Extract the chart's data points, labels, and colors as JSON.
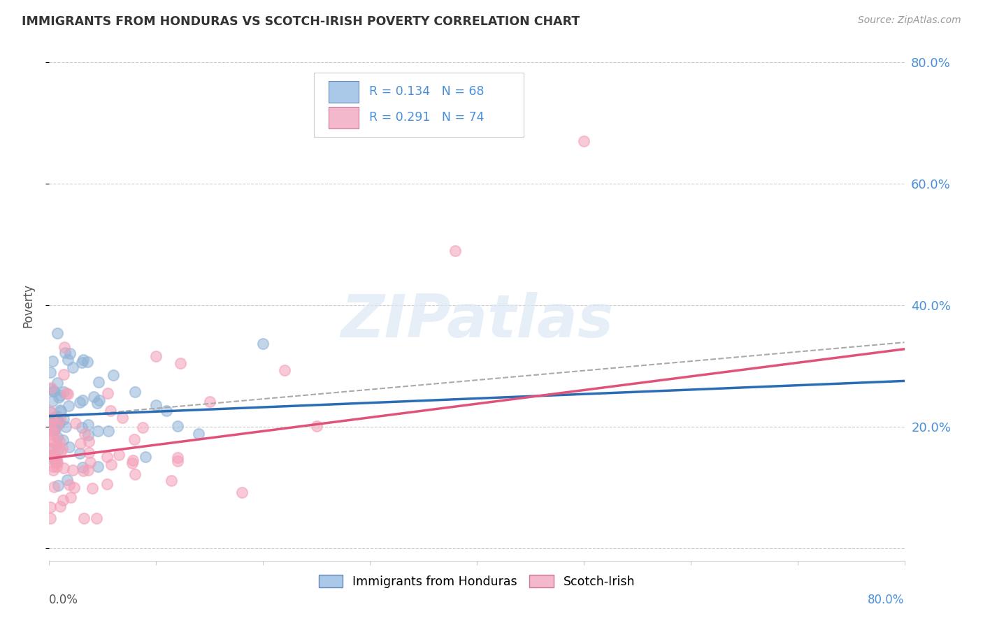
{
  "title": "IMMIGRANTS FROM HONDURAS VS SCOTCH-IRISH POVERTY CORRELATION CHART",
  "source": "Source: ZipAtlas.com",
  "ylabel": "Poverty",
  "right_yticklabels": [
    "",
    "20.0%",
    "40.0%",
    "60.0%",
    "80.0%"
  ],
  "right_ytick_values": [
    0.0,
    0.2,
    0.4,
    0.6,
    0.8
  ],
  "legend_label1": "Immigrants from Honduras",
  "legend_label2": "Scotch-Irish",
  "blue_color": "#92b4d7",
  "pink_color": "#f4a0b8",
  "blue_line_color": "#2a6db5",
  "pink_line_color": "#e0527a",
  "dash_line_color": "#aaaaaa",
  "R1": 0.134,
  "R2": 0.291,
  "N1": 68,
  "N2": 74,
  "xmin": 0.0,
  "xmax": 0.8,
  "ymin": -0.02,
  "ymax": 0.82,
  "blue_intercept": 0.218,
  "blue_slope": 0.072,
  "pink_intercept": 0.148,
  "pink_slope": 0.225,
  "dash_intercept": 0.215,
  "dash_slope": 0.155
}
